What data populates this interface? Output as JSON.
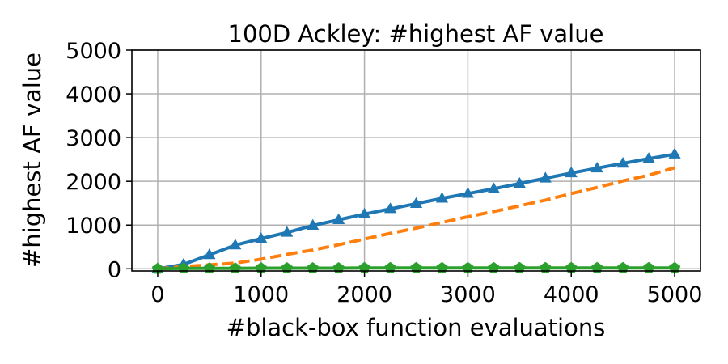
{
  "chart_data": {
    "type": "line",
    "title": "100D Ackley: #highest AF value",
    "xlabel": "#black-box function evaluations",
    "ylabel": "#highest AF value",
    "xlim": [
      -250,
      5250
    ],
    "ylim": [
      -50,
      5000
    ],
    "xticks": [
      0,
      1000,
      2000,
      3000,
      4000,
      5000
    ],
    "yticks": [
      0,
      1000,
      2000,
      3000,
      4000,
      5000
    ],
    "grid": true,
    "series": [
      {
        "color": "#1f77b4",
        "line_style": "solid",
        "marker": "triangle",
        "x": [
          0,
          250,
          500,
          750,
          1000,
          1250,
          1500,
          1750,
          2000,
          2250,
          2500,
          2750,
          3000,
          3250,
          3500,
          3750,
          4000,
          4250,
          4500,
          4750,
          5000
        ],
        "y": [
          0,
          100,
          320,
          540,
          690,
          830,
          990,
          1120,
          1250,
          1370,
          1490,
          1610,
          1720,
          1830,
          1950,
          2070,
          2190,
          2300,
          2410,
          2520,
          2620
        ]
      },
      {
        "color": "#ff7f0e",
        "line_style": "dashed",
        "marker": "none",
        "x": [
          0,
          250,
          500,
          750,
          1000,
          1250,
          1500,
          1750,
          2000,
          2250,
          2500,
          2750,
          3000,
          3250,
          3500,
          3750,
          4000,
          4250,
          4500,
          4750,
          5000
        ],
        "y": [
          0,
          50,
          90,
          130,
          220,
          330,
          430,
          550,
          680,
          810,
          930,
          1060,
          1190,
          1310,
          1440,
          1570,
          1720,
          1860,
          2010,
          2140,
          2310
        ]
      },
      {
        "color": "#2ca02c",
        "line_style": "solid",
        "marker": "pentagon",
        "x": [
          0,
          250,
          500,
          750,
          1000,
          1250,
          1500,
          1750,
          2000,
          2250,
          2500,
          2750,
          3000,
          3250,
          3500,
          3750,
          4000,
          4250,
          4500,
          4750,
          5000
        ],
        "y": [
          0,
          10,
          10,
          10,
          15,
          15,
          15,
          15,
          20,
          20,
          20,
          20,
          20,
          20,
          20,
          20,
          20,
          20,
          20,
          20,
          20
        ]
      }
    ]
  }
}
